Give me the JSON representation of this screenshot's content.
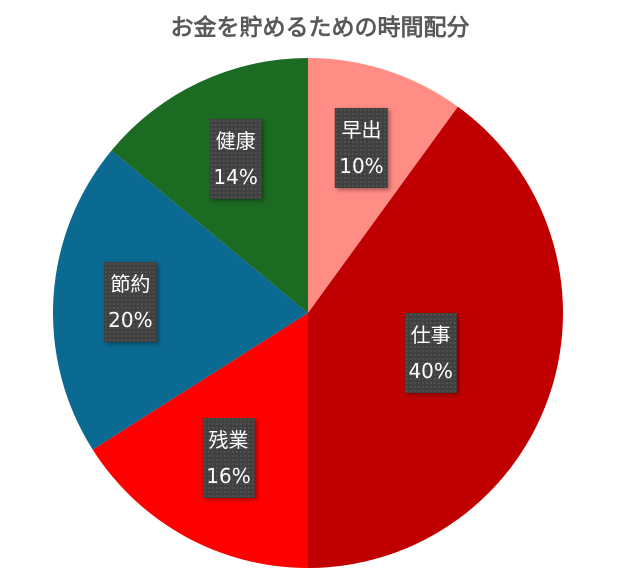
{
  "chart_data": {
    "type": "pie",
    "title": "お金を貯めるための時間配分",
    "start": "top",
    "direction": "clockwise",
    "slices": [
      {
        "label": "早出",
        "value": 10,
        "display": "10%",
        "color": "#FF8C85"
      },
      {
        "label": "仕事",
        "value": 40,
        "display": "40%",
        "color": "#C00000"
      },
      {
        "label": "残業",
        "value": 16,
        "display": "16%",
        "color": "#FF0000"
      },
      {
        "label": "節約",
        "value": 20,
        "display": "20%",
        "color": "#0B6A92"
      },
      {
        "label": "健康",
        "value": 14,
        "display": "14%",
        "color": "#1C6B22"
      }
    ]
  }
}
